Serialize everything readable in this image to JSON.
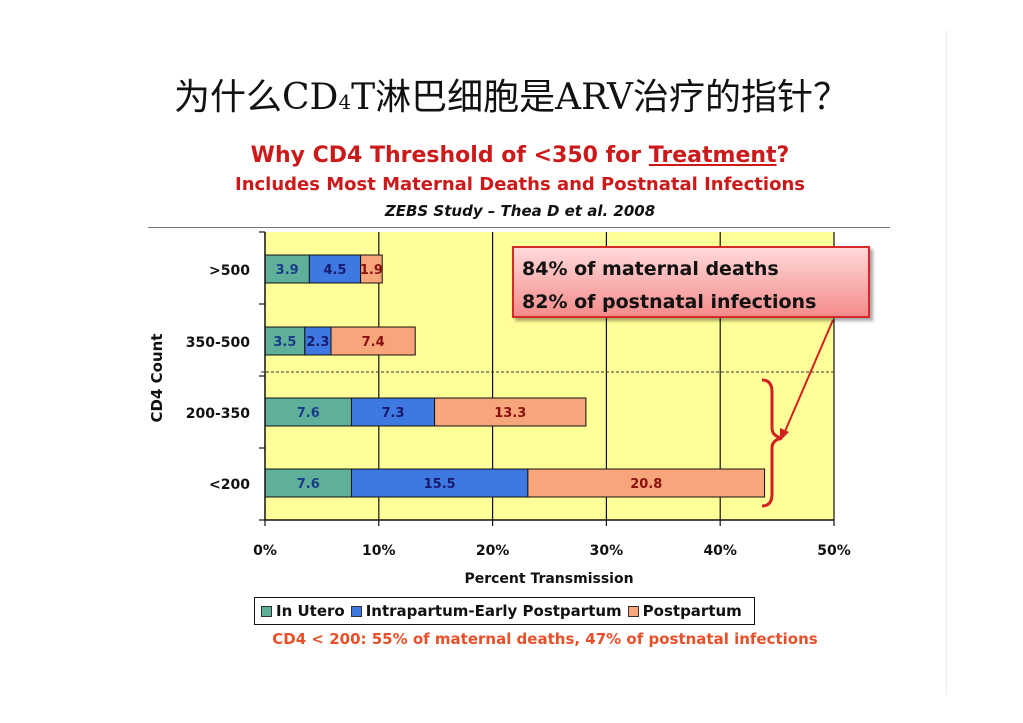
{
  "slide": {
    "title_pre": "为什么CD",
    "title_sub": "4",
    "title_post": "T淋巴细胞是ARV治疗的指针？"
  },
  "chart_data": {
    "type": "bar",
    "orientation": "horizontal",
    "stacked": true,
    "title_pre": "Why CD4 Threshold of ",
    "title_mid": "<350 for ",
    "title_underlined": "Treatment",
    "title_post": "?",
    "subtitle": "Includes Most Maternal Deaths and Postnatal Infections",
    "source": "ZEBS Study – Thea D et al. 2008",
    "xlabel": "Percent Transmission",
    "ylabel": "CD4 Count",
    "xlim": [
      0,
      50
    ],
    "xticks": [
      "0%",
      "10%",
      "20%",
      "30%",
      "40%",
      "50%"
    ],
    "categories": [
      ">500",
      "350-500",
      "200-350",
      "<200"
    ],
    "series": [
      {
        "name": "In Utero",
        "values": [
          3.9,
          3.5,
          7.6,
          7.6
        ],
        "color": "#5fb09a"
      },
      {
        "name": "Intrapartum-Early Postpartum",
        "values": [
          4.5,
          2.3,
          7.3,
          15.5
        ],
        "color": "#3d79e0"
      },
      {
        "name": "Postpartum",
        "values": [
          1.9,
          7.4,
          13.3,
          20.8
        ],
        "color": "#f7a57a"
      }
    ],
    "value_labels": [
      [
        "3.9",
        "4.5",
        "1.9"
      ],
      [
        "3.5",
        "2.3",
        "7.4"
      ],
      [
        "7.6",
        "7.3",
        "13.3"
      ],
      [
        "7.6",
        "15.5",
        "20.8"
      ]
    ],
    "grid": true,
    "plot_background": "#ffff99",
    "callout": {
      "line1": "84% of maternal deaths",
      "line2": "82% of postnatal infections"
    },
    "footnote": "CD4 < 200:  55% of maternal deaths, 47% of postnatal infections"
  },
  "colors": {
    "title_red": "#cc1a1a",
    "footnote_orange": "#e8502a",
    "bracket_red": "#d42020"
  }
}
